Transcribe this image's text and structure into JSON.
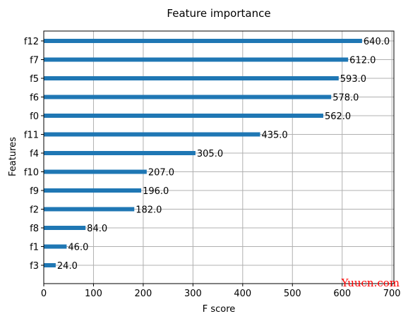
{
  "chart_data": {
    "type": "bar",
    "orientation": "horizontal",
    "title": "Feature importance",
    "xlabel": "F score",
    "ylabel": "Features",
    "categories": [
      "f3",
      "f1",
      "f8",
      "f2",
      "f9",
      "f10",
      "f4",
      "f11",
      "f0",
      "f6",
      "f5",
      "f7",
      "f12"
    ],
    "values": [
      24,
      46,
      84,
      182,
      196,
      207,
      305,
      435,
      562,
      578,
      593,
      612,
      640
    ],
    "value_labels": [
      "24.0",
      "46.0",
      "84.0",
      "182.0",
      "196.0",
      "207.0",
      "305.0",
      "435.0",
      "562.0",
      "578.0",
      "593.0",
      "612.0",
      "640.0"
    ],
    "xlim": [
      0,
      704
    ],
    "xticks": [
      0,
      100,
      200,
      300,
      400,
      500,
      600,
      700
    ],
    "xtick_labels": [
      "0",
      "100",
      "200",
      "300",
      "400",
      "500",
      "600",
      "700"
    ],
    "grid": true,
    "bar_color": "#1f77b4"
  },
  "watermark": "Yuucn.com"
}
